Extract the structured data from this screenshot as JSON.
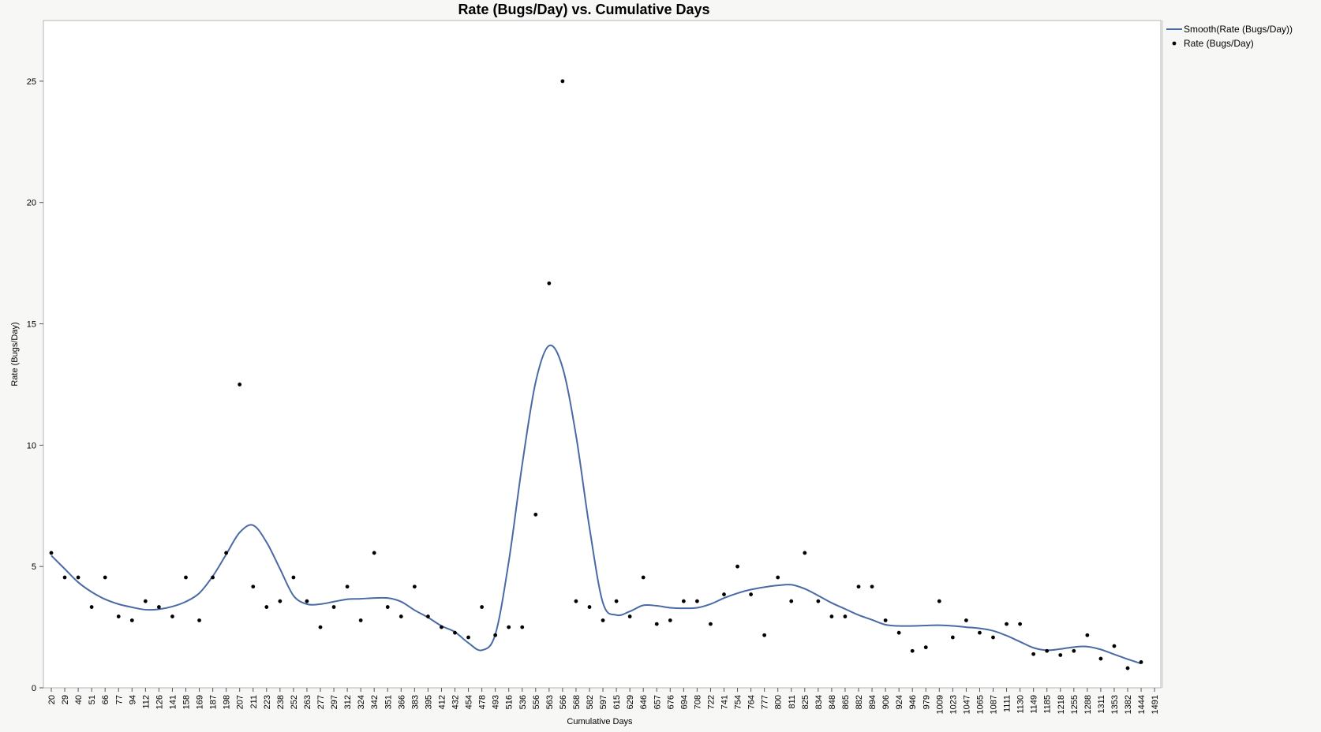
{
  "chart_data": {
    "type": "line+scatter",
    "title": "Rate (Bugs/Day) vs. Cumulative Days",
    "xlabel": "Cumulative Days",
    "ylabel": "Rate (Bugs/Day)",
    "ylim": [
      0,
      27.5
    ],
    "yticks": [
      0,
      5,
      10,
      15,
      20,
      25
    ],
    "categories": [
      "20",
      "29",
      "40",
      "51",
      "66",
      "77",
      "94",
      "112",
      "126",
      "141",
      "158",
      "169",
      "187",
      "198",
      "207",
      "211",
      "223",
      "238",
      "252",
      "263",
      "277",
      "297",
      "312",
      "324",
      "342",
      "351",
      "366",
      "383",
      "395",
      "412",
      "432",
      "454",
      "478",
      "493",
      "516",
      "536",
      "556",
      "563",
      "566",
      "568",
      "582",
      "597",
      "615",
      "629",
      "646",
      "657",
      "676",
      "694",
      "708",
      "722",
      "741",
      "754",
      "764",
      "777",
      "800",
      "811",
      "825",
      "834",
      "848",
      "865",
      "882",
      "894",
      "906",
      "924",
      "946",
      "979",
      "1009",
      "1023",
      "1047",
      "1065",
      "1087",
      "1111",
      "1130",
      "1149",
      "1185",
      "1218",
      "1255",
      "1288",
      "1311",
      "1353",
      "1382",
      "1444",
      "1491"
    ],
    "series": [
      {
        "name": "Rate (Bugs/Day)",
        "kind": "scatter",
        "color": "#000000",
        "values": [
          5.56,
          4.55,
          4.55,
          3.33,
          4.55,
          2.94,
          2.78,
          3.57,
          3.33,
          2.94,
          4.55,
          2.78,
          4.55,
          5.56,
          12.5,
          4.17,
          3.33,
          3.57,
          4.55,
          3.57,
          2.5,
          3.33,
          4.17,
          2.78,
          5.56,
          3.33,
          2.94,
          4.17,
          2.94,
          2.5,
          2.27,
          2.08,
          3.33,
          2.17,
          2.5,
          2.5,
          7.14,
          16.67,
          25.0,
          3.57,
          3.33,
          2.78,
          3.57,
          2.94,
          4.55,
          2.63,
          2.78,
          3.57,
          3.57,
          2.63,
          3.85,
          5.0,
          3.85,
          2.17,
          4.55,
          3.57,
          5.56,
          3.57,
          2.94,
          2.94,
          4.17,
          4.17,
          2.78,
          2.27,
          1.52,
          1.67,
          3.57,
          2.08,
          2.78,
          2.27,
          2.08,
          2.63,
          2.63,
          1.39,
          1.52,
          1.35,
          1.52,
          2.17,
          1.2,
          1.72,
          0.81,
          1.06,
          null
        ]
      },
      {
        "name": "Smooth(Rate (Bugs/Day))",
        "kind": "line",
        "color": "#4a6aa5",
        "values": [
          5.45,
          4.9,
          4.35,
          3.95,
          3.65,
          3.45,
          3.32,
          3.22,
          3.24,
          3.35,
          3.55,
          3.9,
          4.6,
          5.5,
          6.4,
          6.7,
          6.0,
          4.9,
          3.8,
          3.45,
          3.45,
          3.55,
          3.65,
          3.67,
          3.7,
          3.7,
          3.55,
          3.2,
          2.9,
          2.55,
          2.3,
          1.85,
          1.55,
          2.2,
          5.2,
          9.2,
          12.6,
          14.1,
          13.2,
          10.4,
          6.6,
          3.5,
          3.0,
          3.15,
          3.4,
          3.38,
          3.3,
          3.28,
          3.3,
          3.45,
          3.7,
          3.9,
          4.05,
          4.15,
          4.22,
          4.25,
          4.08,
          3.8,
          3.5,
          3.25,
          3.0,
          2.8,
          2.6,
          2.55,
          2.55,
          2.57,
          2.58,
          2.55,
          2.5,
          2.45,
          2.35,
          2.15,
          1.9,
          1.65,
          1.55,
          1.6,
          1.68,
          1.7,
          1.58,
          1.38,
          1.18,
          1.0,
          null
        ]
      }
    ],
    "legend": {
      "position": "right",
      "entries": [
        "Smooth(Rate (Bugs/Day))",
        "Rate (Bugs/Day)"
      ]
    },
    "grid": false
  }
}
